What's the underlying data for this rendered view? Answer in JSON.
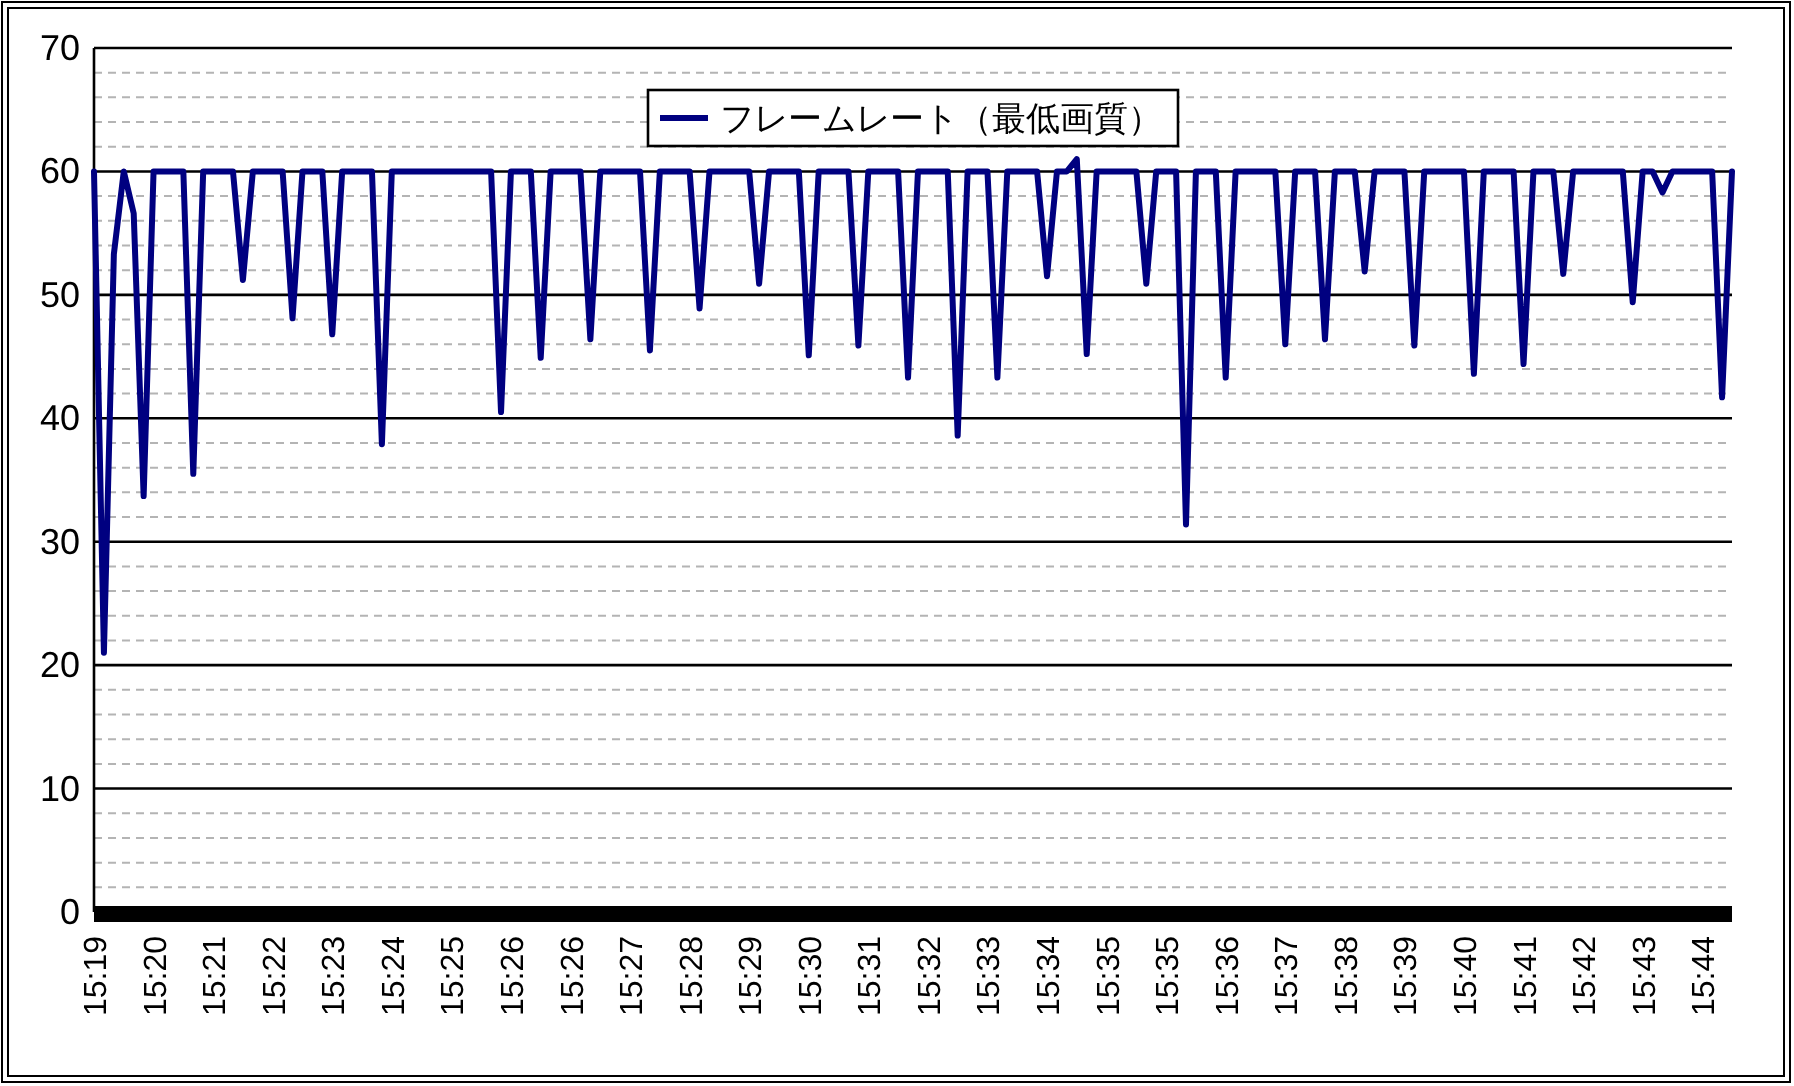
{
  "chart_data": {
    "type": "line",
    "categories": [
      "15:19",
      null,
      null,
      null,
      null,
      null,
      "15:20",
      null,
      null,
      null,
      null,
      null,
      "15:21",
      null,
      null,
      null,
      null,
      null,
      "15:22",
      null,
      null,
      null,
      null,
      null,
      "15:23",
      null,
      null,
      null,
      null,
      null,
      "15:24",
      null,
      null,
      null,
      null,
      null,
      "15:25",
      null,
      null,
      null,
      null,
      null,
      "15:26",
      null,
      null,
      null,
      null,
      null,
      "15:26",
      null,
      null,
      null,
      null,
      null,
      "15:27",
      null,
      null,
      null,
      null,
      null,
      "15:28",
      null,
      null,
      null,
      null,
      null,
      "15:29",
      null,
      null,
      null,
      null,
      null,
      "15:30",
      null,
      null,
      null,
      null,
      null,
      "15:31",
      null,
      null,
      null,
      null,
      null,
      "15:32",
      null,
      null,
      null,
      null,
      null,
      "15:33",
      null,
      null,
      null,
      null,
      null,
      "15:34",
      null,
      null,
      null,
      null,
      null,
      "15:35",
      null,
      null,
      null,
      null,
      null,
      "15:35",
      null,
      null,
      null,
      null,
      null,
      "15:36",
      null,
      null,
      null,
      null,
      null,
      "15:37",
      null,
      null,
      null,
      null,
      null,
      "15:38",
      null,
      null,
      null,
      null,
      null,
      "15:39",
      null,
      null,
      null,
      null,
      null,
      "15:40",
      null,
      null,
      null,
      null,
      null,
      "15:41",
      null,
      null,
      null,
      null,
      null,
      "15:42",
      null,
      null,
      null,
      null,
      null,
      "15:43",
      null,
      null,
      null,
      null,
      null,
      "15:44",
      null,
      null,
      null
    ],
    "series": [
      {
        "name": "フレームレート（最低画質）",
        "color": "#000080",
        "values": [
          60,
          21,
          53.3,
          60,
          56.6,
          33.7,
          60,
          60,
          60,
          60,
          35.5,
          60,
          60,
          60,
          60,
          51.2,
          60,
          60,
          60,
          60,
          48.1,
          60,
          60,
          60,
          46.8,
          60,
          60,
          60,
          60,
          37.9,
          60,
          60,
          60,
          60,
          60,
          60,
          60,
          60,
          60,
          60,
          60,
          40.5,
          60,
          60,
          60,
          44.9,
          60,
          60,
          60,
          60,
          46.4,
          60,
          60,
          60,
          60,
          60,
          45.5,
          60,
          60,
          60,
          60,
          48.9,
          60,
          60,
          60,
          60,
          60,
          50.9,
          60,
          60,
          60,
          60,
          45.1,
          60,
          60,
          60,
          60,
          45.9,
          60,
          60,
          60,
          60,
          43.3,
          60,
          60,
          60,
          60,
          38.6,
          60,
          60,
          60,
          43.3,
          60,
          60,
          60,
          60,
          51.5,
          60,
          60,
          61,
          45.2,
          60,
          60,
          60,
          60,
          60,
          50.9,
          60,
          60,
          60,
          31.4,
          60,
          60,
          60,
          43.3,
          60,
          60,
          60,
          60,
          60,
          46,
          60,
          60,
          60,
          46.4,
          60,
          60,
          60,
          51.9,
          60,
          60,
          60,
          60,
          45.9,
          60,
          60,
          60,
          60,
          60,
          43.6,
          60,
          60,
          60,
          60,
          44.4,
          60,
          60,
          60,
          51.7,
          60,
          60,
          60,
          60,
          60,
          60,
          49.4,
          60,
          60,
          58.3,
          60,
          60,
          60,
          60,
          60,
          41.7,
          60
        ]
      }
    ],
    "ylim": [
      0,
      70
    ],
    "yticks": [
      0,
      {
        "value": 2,
        "label": null
      },
      {
        "value": 4,
        "label": null
      },
      {
        "value": 6,
        "label": null
      },
      {
        "value": 8,
        "label": null
      },
      10,
      {
        "value": 12,
        "label": null
      },
      {
        "value": 14,
        "label": null
      },
      {
        "value": 16,
        "label": null
      },
      {
        "value": 18,
        "label": null
      },
      20,
      {
        "value": 22,
        "label": null
      },
      {
        "value": 24,
        "label": null
      },
      {
        "value": 26,
        "label": null
      },
      {
        "value": 28,
        "label": null
      },
      30,
      {
        "value": 32,
        "label": null
      },
      {
        "value": 34,
        "label": null
      },
      {
        "value": 36,
        "label": null
      },
      {
        "value": 38,
        "label": null
      },
      40,
      {
        "value": 42,
        "label": null
      },
      {
        "value": 44,
        "label": null
      },
      {
        "value": 46,
        "label": null
      },
      {
        "value": 48,
        "label": null
      },
      50,
      {
        "value": 52,
        "label": null
      },
      {
        "value": 54,
        "label": null
      },
      {
        "value": 56,
        "label": null
      },
      {
        "value": 58,
        "label": null
      },
      60,
      {
        "value": 62,
        "label": null
      },
      {
        "value": 64,
        "label": null
      },
      {
        "value": 66,
        "label": null
      },
      {
        "value": 68,
        "label": null
      },
      70
    ],
    "grid": "y",
    "legend": "top",
    "marker": "none",
    "line_style": "solid"
  }
}
